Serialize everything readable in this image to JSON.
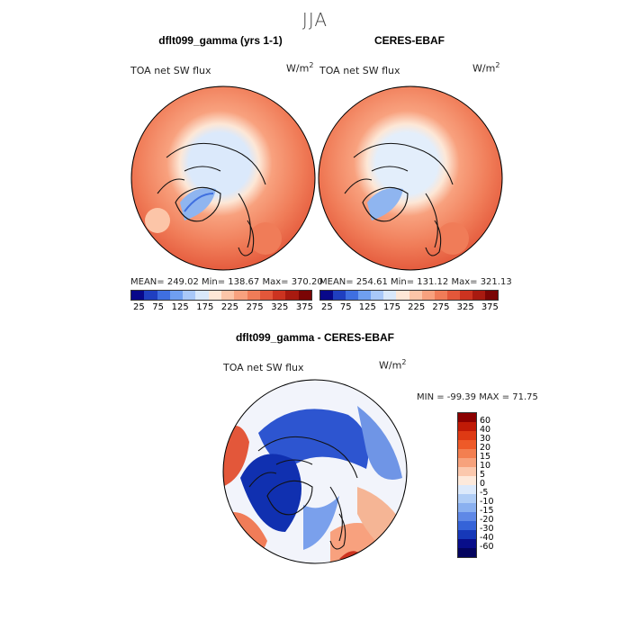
{
  "figure": {
    "season": "JJA",
    "panel_left_title": "dflt099_gamma (yrs 1-1)",
    "panel_right_title": "CERES-EBAF",
    "panel_diff_title": "dflt099_gamma - CERES-EBAF",
    "variable": "TOA net SW flux",
    "units_base": "W/m",
    "units_exp": "2"
  },
  "chart_data": [
    {
      "type": "heatmap",
      "projection": "polar-stereographic-north",
      "title": "dflt099_gamma (yrs 1-1)",
      "variable": "TOA net SW flux",
      "units": "W/m2",
      "stats": {
        "mean": "249.02",
        "min": "138.67",
        "max": "370.20"
      },
      "stats_text": "MEAN= 249.02   Min= 138.67   Max= 370.20",
      "colorbar": {
        "levels": [
          "25",
          "75",
          "125",
          "175",
          "225",
          "275",
          "325",
          "375"
        ],
        "colors": [
          "#08088a",
          "#1f3fc0",
          "#3f6fe0",
          "#6f9ff0",
          "#a8c8f8",
          "#d8e8fa",
          "#fde7d6",
          "#fcc5a8",
          "#f8a17e",
          "#f07c58",
          "#e3573a",
          "#cc3320",
          "#a81a10",
          "#7a0505"
        ]
      }
    },
    {
      "type": "heatmap",
      "projection": "polar-stereographic-north",
      "title": "CERES-EBAF",
      "variable": "TOA net SW flux",
      "units": "W/m2",
      "stats": {
        "mean": "254.61",
        "min": "131.12",
        "max": "321.13"
      },
      "stats_text": "MEAN= 254.61   Min= 131.12   Max= 321.13",
      "colorbar": {
        "levels": [
          "25",
          "75",
          "125",
          "175",
          "225",
          "275",
          "325",
          "375"
        ]
      }
    },
    {
      "type": "heatmap",
      "projection": "polar-stereographic-north",
      "title": "dflt099_gamma - CERES-EBAF",
      "variable": "TOA net SW flux",
      "units": "W/m2",
      "stats": {
        "min": "-99.39",
        "max": "71.75"
      },
      "stats_text": "MIN = -99.39 MAX =  71.75",
      "colorbar": {
        "levels": [
          "60",
          "40",
          "30",
          "20",
          "15",
          "10",
          "5",
          "0",
          "-5",
          "-10",
          "-15",
          "-20",
          "-30",
          "-40",
          "-60"
        ],
        "colors": [
          "#8b0000",
          "#c01a06",
          "#de3a14",
          "#ee5a28",
          "#f37f50",
          "#f7a27c",
          "#fbc8ad",
          "#fde9db",
          "#dce9fb",
          "#b0cdf6",
          "#8ab0f0",
          "#5f88e6",
          "#3563d8",
          "#1638b8",
          "#080e8a",
          "#04045e"
        ]
      }
    }
  ]
}
